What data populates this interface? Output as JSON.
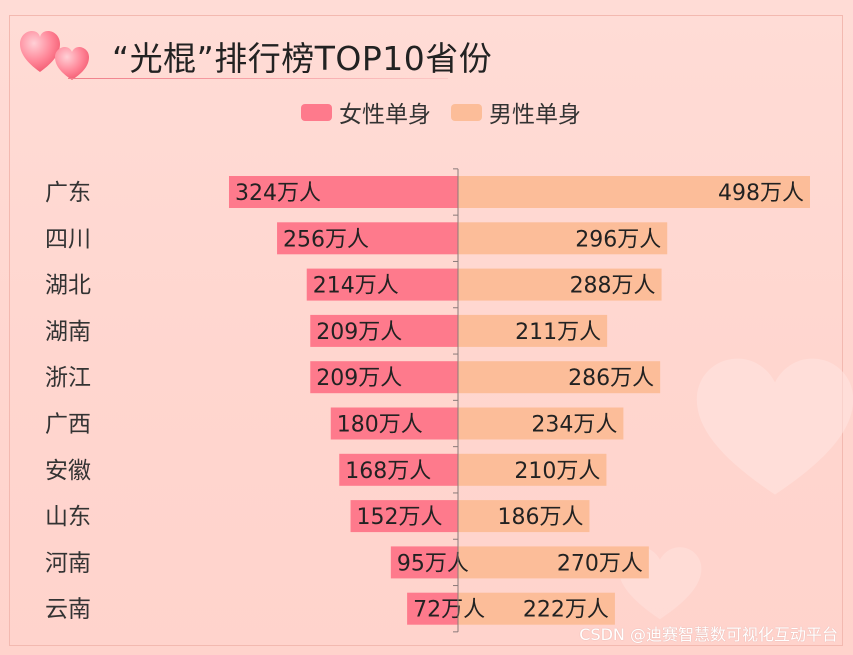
{
  "header": {
    "title": "“光棍”排行榜TOP10省份"
  },
  "legend": [
    {
      "label": "女性单身",
      "color": "#fe7a8c"
    },
    {
      "label": "男性单身",
      "color": "#fcbd99"
    }
  ],
  "watermark": "CSDN @迪赛智慧数可视化互动平台",
  "chart_data": {
    "type": "bar",
    "orientation": "horizontal-butterfly",
    "categories": [
      "广东",
      "四川",
      "湖北",
      "湖南",
      "浙江",
      "广西",
      "安徽",
      "山东",
      "河南",
      "云南"
    ],
    "series": [
      {
        "name": "女性单身",
        "values": [
          324,
          256,
          214,
          209,
          209,
          180,
          168,
          152,
          95,
          72
        ],
        "color": "#fe7a8c",
        "side": "left"
      },
      {
        "name": "男性单身",
        "values": [
          498,
          296,
          288,
          211,
          286,
          234,
          210,
          186,
          270,
          222
        ],
        "color": "#fcbd99",
        "side": "right"
      }
    ],
    "value_suffix": "万人",
    "xlim": [
      0,
      498
    ],
    "grid": false,
    "legend_position": "top-center"
  }
}
